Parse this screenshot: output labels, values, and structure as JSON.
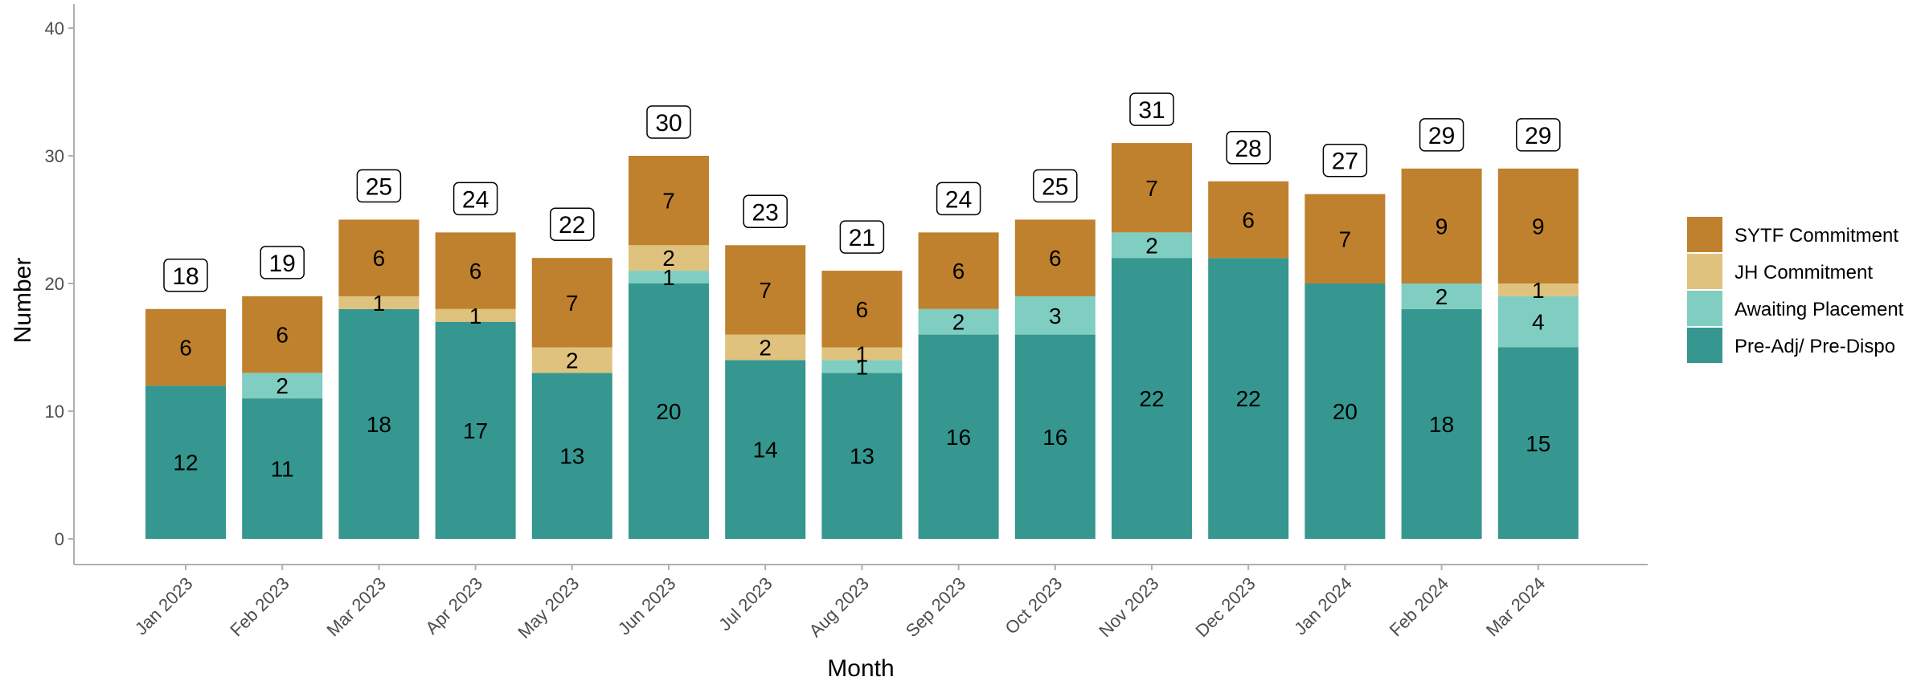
{
  "chart_data": {
    "type": "bar",
    "stacked": true,
    "title": "",
    "xlabel": "Month",
    "ylabel": "Number",
    "ylim": [
      0,
      40
    ],
    "yticks": [
      0,
      10,
      20,
      30,
      40
    ],
    "grid": false,
    "legend_position": "right",
    "categories": [
      "Jan 2023",
      "Feb 2023",
      "Mar 2023",
      "Apr 2023",
      "May 2023",
      "Jun 2023",
      "Jul 2023",
      "Aug 2023",
      "Sep 2023",
      "Oct 2023",
      "Nov 2023",
      "Dec 2023",
      "Jan 2024",
      "Feb 2024",
      "Mar 2024"
    ],
    "series": [
      {
        "name": "Pre-Adj/ Pre-Dispo",
        "color": "#35978f",
        "values": [
          12,
          11,
          18,
          17,
          13,
          20,
          14,
          13,
          16,
          16,
          22,
          22,
          20,
          18,
          15
        ]
      },
      {
        "name": "Awaiting Placement",
        "color": "#80cdc1",
        "values": [
          0,
          2,
          0,
          0,
          0,
          1,
          0,
          1,
          2,
          3,
          2,
          0,
          0,
          2,
          4
        ]
      },
      {
        "name": "JH Commitment",
        "color": "#dfc27d",
        "values": [
          0,
          0,
          1,
          1,
          2,
          2,
          2,
          1,
          0,
          0,
          0,
          0,
          0,
          0,
          1
        ]
      },
      {
        "name": "SYTF Commitment",
        "color": "#bf812d",
        "values": [
          6,
          6,
          6,
          6,
          7,
          7,
          7,
          6,
          6,
          6,
          7,
          6,
          7,
          9,
          9
        ]
      }
    ],
    "totals": [
      18,
      19,
      25,
      24,
      22,
      30,
      23,
      21,
      24,
      25,
      31,
      28,
      27,
      29,
      29
    ],
    "legend_order": [
      "SYTF Commitment",
      "JH Commitment",
      "Awaiting Placement",
      "Pre-Adj/ Pre-Dispo"
    ]
  }
}
